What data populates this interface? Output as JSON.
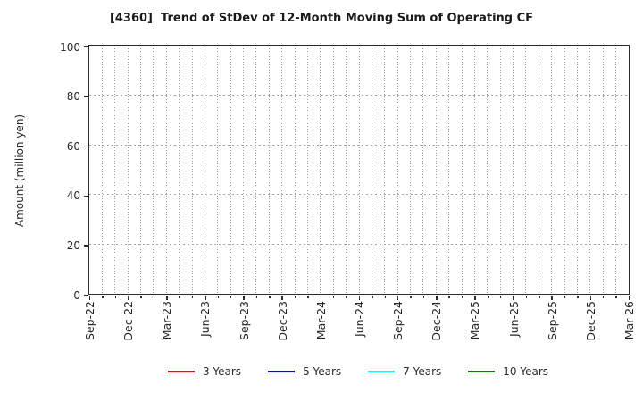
{
  "chart_data": {
    "type": "line",
    "title": "[4360]  Trend of StDev of 12-Month Moving Sum of Operating CF",
    "ylabel": "Amount (million yen)",
    "xlabel": "",
    "ylim": [
      0,
      100
    ],
    "yticks": [
      0,
      20,
      40,
      60,
      80,
      100
    ],
    "x_tick_labels": [
      "Sep-22",
      "Dec-22",
      "Mar-23",
      "Jun-23",
      "Sep-23",
      "Dec-23",
      "Mar-24",
      "Jun-24",
      "Sep-24",
      "Dec-24",
      "Mar-25",
      "Jun-25",
      "Sep-25",
      "Dec-25",
      "Mar-26"
    ],
    "months_per_major_tick": 3,
    "grid": true,
    "minor_vertical_gridlines": "monthly",
    "legend_position": "bottom",
    "plot_is_empty": true,
    "series": [
      {
        "name": "3 Years",
        "color": "#ff0000",
        "x": [],
        "values": []
      },
      {
        "name": "5 Years",
        "color": "#0000ff",
        "x": [],
        "values": []
      },
      {
        "name": "7 Years",
        "color": "#00ffff",
        "x": [],
        "values": []
      },
      {
        "name": "10 Years",
        "color": "#008000",
        "x": [],
        "values": []
      }
    ]
  }
}
